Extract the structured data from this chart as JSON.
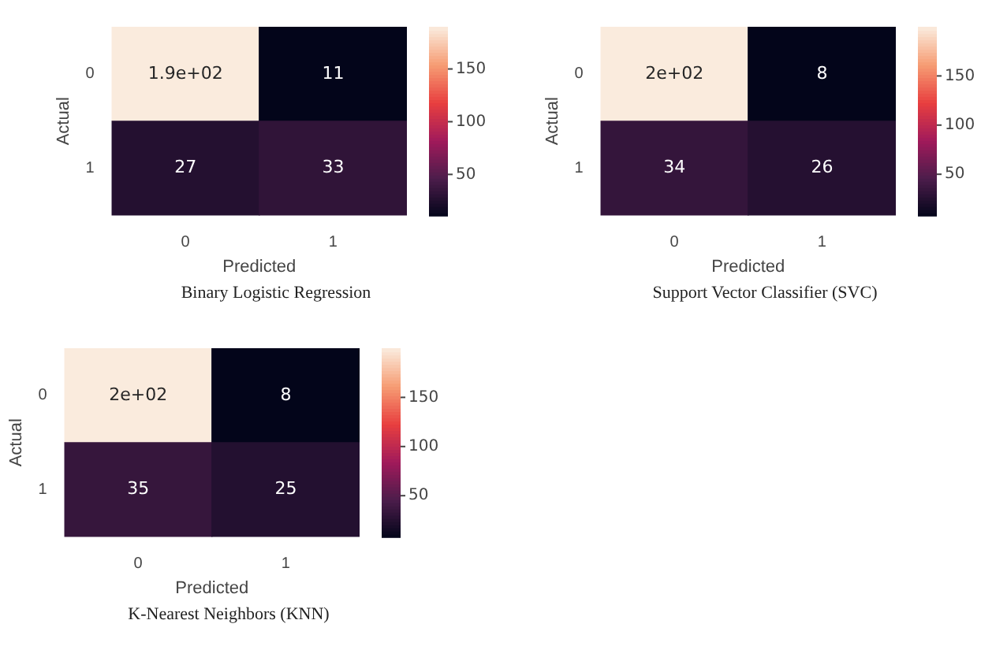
{
  "chart_data": [
    {
      "type": "heatmap",
      "title": "Binary Logistic Regression",
      "xlabel": "Predicted",
      "ylabel": "Actual",
      "categories": [
        "0",
        "1"
      ],
      "y_categories": [
        "0",
        "1"
      ],
      "cells": [
        [
          190,
          11
        ],
        [
          27,
          33
        ]
      ],
      "cell_labels": [
        [
          "1.9e+02",
          "11"
        ],
        [
          "27",
          "33"
        ]
      ],
      "clim": [
        11,
        190
      ],
      "cticks": [
        50,
        100,
        150
      ]
    },
    {
      "type": "heatmap",
      "title": "Support Vector Classifier (SVC)",
      "xlabel": "Predicted",
      "ylabel": "Actual",
      "categories": [
        "0",
        "1"
      ],
      "y_categories": [
        "0",
        "1"
      ],
      "cells": [
        [
          200,
          8
        ],
        [
          34,
          26
        ]
      ],
      "cell_labels": [
        [
          "2e+02",
          "8"
        ],
        [
          "34",
          "26"
        ]
      ],
      "clim": [
        8,
        200
      ],
      "cticks": [
        50,
        100,
        150
      ]
    },
    {
      "type": "heatmap",
      "title": "K-Nearest Neighbors (KNN)",
      "xlabel": "Predicted",
      "ylabel": "Actual",
      "categories": [
        "0",
        "1"
      ],
      "y_categories": [
        "0",
        "1"
      ],
      "cells": [
        [
          200,
          8
        ],
        [
          35,
          25
        ]
      ],
      "cell_labels": [
        [
          "2e+02",
          "8"
        ],
        [
          "35",
          "25"
        ]
      ],
      "clim": [
        8,
        200
      ],
      "cticks": [
        50,
        100,
        150
      ]
    }
  ]
}
